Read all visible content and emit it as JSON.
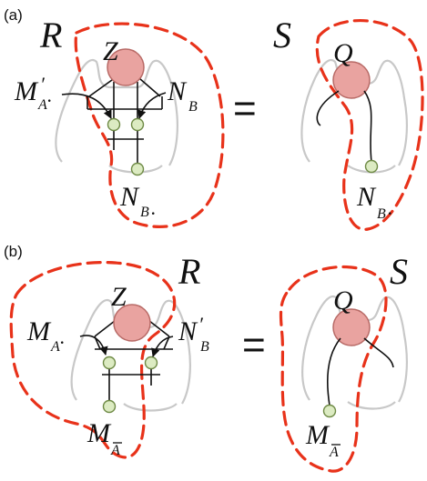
{
  "panels": [
    {
      "label": "(a)",
      "lhs": {
        "outer_label": "R",
        "tensor_label": "Z",
        "in_left": {
          "base": "M",
          "prime": "′",
          "sub": "A",
          "tail": "."
        },
        "in_right": {
          "base": "N",
          "sub": "B"
        },
        "out": {
          "base": "N",
          "sub": "B",
          "tail": "."
        }
      },
      "equals": "=",
      "rhs": {
        "outer_label": "S",
        "tensor_label": "Q",
        "out": {
          "base": "N",
          "sub": "B",
          "tail": "."
        }
      }
    },
    {
      "label": "(b)",
      "lhs": {
        "outer_label": "R",
        "tensor_label": "Z",
        "in_left": {
          "base": "M",
          "sub": "A",
          "tail": "."
        },
        "in_right": {
          "base": "N",
          "prime": "′",
          "sub": "B"
        },
        "out": {
          "base": "M",
          "sub": "A",
          "bar": true
        }
      },
      "equals": "=",
      "rhs": {
        "outer_label": "S",
        "tensor_label": "Q",
        "out": {
          "base": "M",
          "sub": "A",
          "bar": true
        }
      }
    }
  ],
  "colors": {
    "region_dash": "#e8321a",
    "tensor_fill": "#e9a3a0",
    "node_fill": "#dcebc2",
    "frame_outline": "#c8c8c8"
  }
}
